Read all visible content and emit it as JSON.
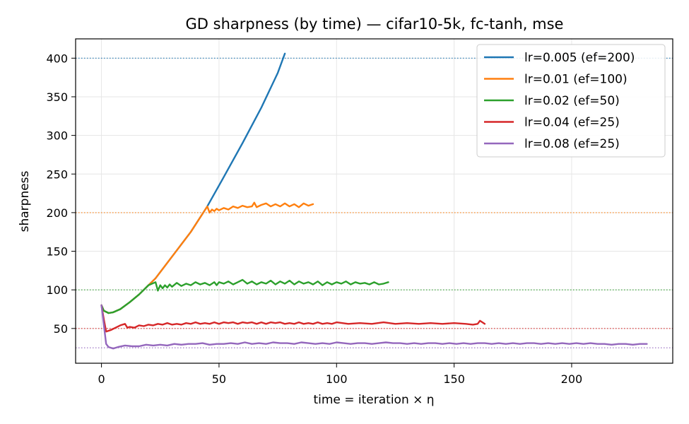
{
  "chart_data": {
    "type": "line",
    "title": "GD sharpness (by time) — cifar10-5k, fc-tanh, mse",
    "xlabel": "time = iteration × η",
    "ylabel": "sharpness",
    "xlim": [
      -11,
      243
    ],
    "ylim": [
      5,
      425
    ],
    "xticks": [
      0,
      50,
      100,
      150,
      200
    ],
    "yticks": [
      50,
      100,
      150,
      200,
      250,
      300,
      350,
      400
    ],
    "grid": true,
    "legend_position": "top-right",
    "series": [
      {
        "name": "lr=0.005 (ef=200)",
        "color": "#1f77b4",
        "stability_threshold": 400,
        "x": [
          0,
          1,
          3,
          5,
          8,
          12,
          16,
          20,
          23,
          30,
          38,
          45,
          52,
          60,
          68,
          75,
          78
        ],
        "y": [
          80,
          73,
          70,
          71,
          75,
          84,
          94,
          106,
          115,
          143,
          175,
          208,
          246,
          290,
          336,
          381,
          406
        ]
      },
      {
        "name": "lr=0.01 (ef=100)",
        "color": "#ff7f0e",
        "stability_threshold": 200,
        "x": [
          0,
          1,
          3,
          5,
          8,
          12,
          16,
          20,
          23,
          30,
          38,
          45,
          46,
          47,
          48,
          49,
          50,
          52,
          54,
          56,
          58,
          60,
          62,
          64,
          65,
          66,
          68,
          70,
          72,
          74,
          76,
          78,
          80,
          82,
          84,
          86,
          88,
          90
        ],
        "y": [
          80,
          73,
          70,
          71,
          75,
          84,
          94,
          106,
          115,
          143,
          175,
          208,
          200,
          204,
          202,
          205,
          203,
          206,
          204,
          208,
          206,
          209,
          207,
          208,
          213,
          207,
          210,
          212,
          208,
          211,
          208,
          212,
          208,
          211,
          207,
          212,
          209,
          211
        ]
      },
      {
        "name": "lr=0.02 (ef=50)",
        "color": "#2ca02c",
        "stability_threshold": 100,
        "x": [
          0,
          1,
          3,
          5,
          8,
          12,
          16,
          20,
          23,
          24,
          25,
          26,
          27,
          28,
          29,
          30,
          32,
          34,
          36,
          38,
          40,
          42,
          44,
          46,
          48,
          49,
          50,
          52,
          54,
          56,
          58,
          60,
          62,
          64,
          66,
          68,
          70,
          72,
          74,
          76,
          78,
          80,
          82,
          84,
          86,
          88,
          90,
          92,
          94,
          96,
          98,
          100,
          102,
          104,
          106,
          108,
          110,
          112,
          114,
          116,
          118,
          120,
          122
        ],
        "y": [
          80,
          73,
          70,
          71,
          75,
          84,
          94,
          106,
          110,
          99,
          106,
          102,
          106,
          103,
          107,
          104,
          109,
          105,
          108,
          106,
          110,
          107,
          109,
          106,
          110,
          106,
          110,
          108,
          111,
          107,
          110,
          113,
          108,
          111,
          107,
          110,
          108,
          112,
          107,
          111,
          108,
          112,
          107,
          111,
          108,
          110,
          107,
          111,
          106,
          110,
          107,
          110,
          108,
          111,
          107,
          110,
          108,
          109,
          107,
          110,
          107,
          108,
          110
        ]
      },
      {
        "name": "lr=0.04 (ef=25)",
        "color": "#d62728",
        "stability_threshold": 50,
        "x": [
          0,
          1,
          2,
          4,
          6,
          8,
          10,
          11,
          12,
          14,
          16,
          18,
          20,
          22,
          24,
          26,
          28,
          30,
          32,
          34,
          36,
          38,
          40,
          42,
          44,
          46,
          48,
          50,
          52,
          54,
          56,
          58,
          60,
          62,
          64,
          66,
          68,
          70,
          72,
          74,
          76,
          78,
          80,
          82,
          84,
          86,
          88,
          90,
          92,
          94,
          96,
          98,
          100,
          105,
          110,
          115,
          120,
          125,
          130,
          135,
          140,
          145,
          150,
          155,
          158,
          160,
          161,
          163
        ],
        "y": [
          80,
          62,
          46,
          48,
          51,
          54,
          56,
          51,
          52,
          51,
          54,
          53,
          55,
          54,
          56,
          55,
          57,
          55,
          56,
          55,
          57,
          56,
          58,
          56,
          57,
          56,
          58,
          56,
          58,
          57,
          58,
          56,
          58,
          57,
          58,
          56,
          58,
          56,
          58,
          57,
          58,
          56,
          57,
          56,
          58,
          56,
          57,
          56,
          58,
          56,
          57,
          56,
          58,
          56,
          57,
          56,
          58,
          56,
          57,
          56,
          57,
          56,
          57,
          56,
          55,
          56,
          60,
          56
        ]
      },
      {
        "name": "lr=0.08 (ef=25)",
        "color": "#9467bd",
        "stability_threshold": 25,
        "x": [
          0,
          1,
          2,
          3,
          5,
          7,
          10,
          13,
          16,
          19,
          22,
          25,
          28,
          31,
          34,
          37,
          40,
          43,
          46,
          49,
          52,
          55,
          58,
          61,
          64,
          67,
          70,
          73,
          76,
          79,
          82,
          85,
          88,
          91,
          94,
          97,
          100,
          103,
          106,
          109,
          112,
          115,
          118,
          121,
          124,
          127,
          130,
          133,
          136,
          139,
          142,
          145,
          148,
          151,
          154,
          157,
          160,
          163,
          166,
          169,
          172,
          175,
          178,
          181,
          184,
          187,
          190,
          193,
          196,
          199,
          202,
          205,
          208,
          211,
          214,
          217,
          220,
          223,
          226,
          229,
          232
        ],
        "y": [
          80,
          55,
          30,
          26,
          24,
          26,
          28,
          27,
          27,
          29,
          28,
          29,
          28,
          30,
          29,
          30,
          30,
          31,
          29,
          30,
          30,
          31,
          30,
          32,
          30,
          31,
          30,
          32,
          31,
          31,
          30,
          32,
          31,
          30,
          31,
          30,
          32,
          31,
          30,
          31,
          31,
          30,
          31,
          32,
          31,
          31,
          30,
          31,
          30,
          31,
          31,
          30,
          31,
          30,
          31,
          30,
          31,
          31,
          30,
          31,
          30,
          31,
          30,
          31,
          31,
          30,
          31,
          30,
          31,
          30,
          31,
          30,
          31,
          30,
          30,
          29,
          30,
          30,
          29,
          30,
          30
        ]
      }
    ]
  }
}
